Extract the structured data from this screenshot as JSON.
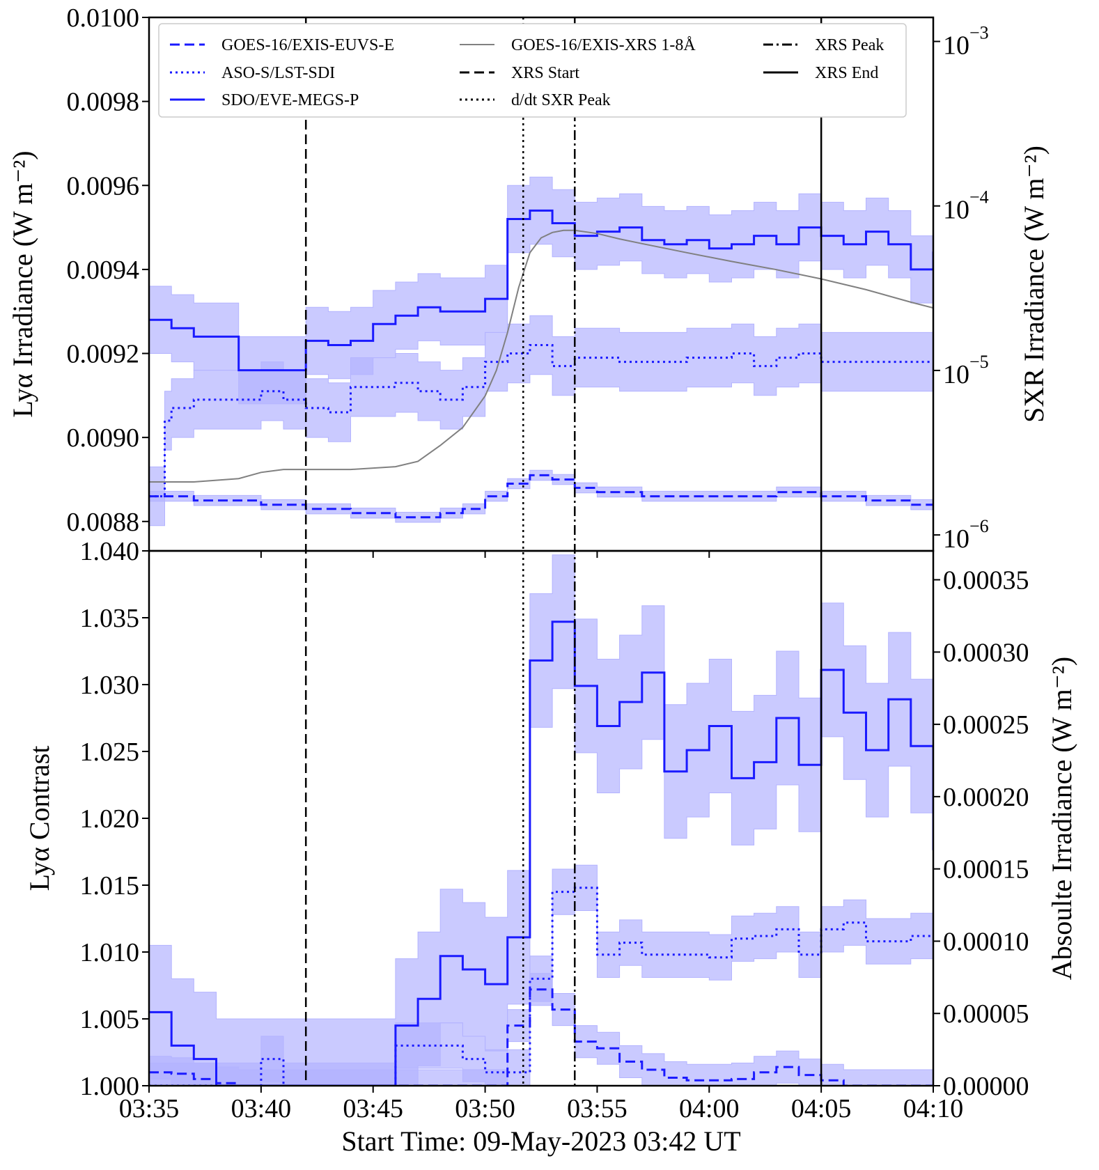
{
  "chart_data": [
    {
      "type": "line",
      "panel": "top",
      "x_ticks": [
        "03:35",
        "03:40",
        "03:45",
        "03:50",
        "03:55",
        "04:00",
        "04:05",
        "04:10"
      ],
      "xlim_minutes_after_0335": [
        0,
        35
      ],
      "ylabel": "Lyα Irradiance (W m⁻²)",
      "y_ticks": [
        "0.0100",
        "0.0098",
        "0.0096",
        "0.0094",
        "0.0092",
        "0.0090",
        "0.0088"
      ],
      "ylim": [
        0.00873,
        0.01
      ],
      "y2label": "SXR Irradiance (W m⁻²)",
      "y2_scale": "log",
      "y2_ticks": [
        {
          "base": "10",
          "exp": "−3"
        },
        {
          "base": "10",
          "exp": "−4"
        },
        {
          "base": "10",
          "exp": "−5"
        },
        {
          "base": "10",
          "exp": "−6"
        }
      ],
      "y2lim": [
        8e-07,
        0.0014
      ],
      "legend": {
        "placement": "top",
        "entries": [
          {
            "label": "GOES-16/EXIS-EUVS-E",
            "style": "dashed",
            "color": "#1a1aff"
          },
          {
            "label": "ASO-S/LST-SDI",
            "style": "dotted",
            "color": "#1a1aff"
          },
          {
            "label": "SDO/EVE-MEGS-P",
            "style": "solid",
            "color": "#1a1aff"
          },
          {
            "label": "GOES-16/EXIS-XRS 1-8Å",
            "style": "solid-thin",
            "color": "#808080"
          },
          {
            "label": "XRS Start",
            "style": "dashed",
            "color": "#000000"
          },
          {
            "label": "d/dt SXR Peak",
            "style": "dotted",
            "color": "#000000"
          },
          {
            "label": "XRS Peak",
            "style": "dashdot",
            "color": "#000000"
          },
          {
            "label": "XRS End",
            "style": "solid",
            "color": "#000000"
          }
        ]
      },
      "series": [
        {
          "name": "SDO/EVE-MEGS-P",
          "style": "solid",
          "color": "#1a1aff",
          "axis": "left",
          "x": [
            0,
            1,
            2,
            3,
            4,
            5,
            6,
            7,
            8,
            9,
            10,
            11,
            12,
            13,
            14,
            15,
            16,
            17,
            18,
            19,
            20,
            21,
            22,
            23,
            24,
            25,
            26,
            27,
            28,
            29,
            30,
            31,
            32,
            33,
            34,
            35
          ],
          "values": [
            0.00928,
            0.00926,
            0.00924,
            0.00924,
            0.00916,
            0.00916,
            0.00916,
            0.00923,
            0.00922,
            0.00923,
            0.00927,
            0.00929,
            0.00931,
            0.0093,
            0.0093,
            0.00933,
            0.00952,
            0.00954,
            0.00951,
            0.00948,
            0.00949,
            0.0095,
            0.00947,
            0.00946,
            0.00947,
            0.00945,
            0.00946,
            0.00948,
            0.00946,
            0.0095,
            0.00948,
            0.00946,
            0.00949,
            0.00946,
            0.0094,
            0.00944
          ],
          "band_halfwidth": 8e-05
        },
        {
          "name": "ASO-S/LST-SDI",
          "style": "dotted",
          "color": "#1a1aff",
          "axis": "left",
          "x": [
            0,
            0.7,
            1,
            2,
            3,
            4,
            5,
            6,
            7,
            8,
            9,
            10,
            11,
            12,
            13,
            14,
            15,
            16,
            17,
            18,
            19,
            20,
            21,
            22,
            23,
            24,
            25,
            26,
            27,
            28,
            29,
            30,
            31,
            32,
            33,
            34,
            35
          ],
          "values": [
            0.00886,
            0.00904,
            0.00907,
            0.00909,
            0.00909,
            0.00909,
            0.00911,
            0.00909,
            0.00907,
            0.00906,
            0.00912,
            0.00912,
            0.00913,
            0.00911,
            0.00909,
            0.00912,
            0.00918,
            0.0092,
            0.00922,
            0.00917,
            0.00919,
            0.00919,
            0.00918,
            0.00918,
            0.00918,
            0.00919,
            0.00919,
            0.0092,
            0.00917,
            0.00919,
            0.0092,
            0.00918,
            0.00918,
            0.00918,
            0.00918,
            0.00918,
            0.00918
          ],
          "band_halfwidth": 7e-05
        },
        {
          "name": "GOES-16/EXIS-EUVS-E",
          "style": "dashed",
          "color": "#1a1aff",
          "axis": "left",
          "x": [
            0,
            1,
            2,
            3,
            4,
            5,
            6,
            7,
            8,
            9,
            10,
            11,
            12,
            13,
            14,
            15,
            16,
            17,
            18,
            19,
            20,
            21,
            22,
            23,
            24,
            25,
            26,
            27,
            28,
            29,
            30,
            31,
            32,
            33,
            34,
            35
          ],
          "values": [
            0.00886,
            0.00886,
            0.00885,
            0.00885,
            0.00885,
            0.00884,
            0.00884,
            0.00883,
            0.00883,
            0.00882,
            0.00882,
            0.00881,
            0.00881,
            0.00882,
            0.00883,
            0.00886,
            0.00889,
            0.00891,
            0.0089,
            0.00888,
            0.00887,
            0.00887,
            0.00886,
            0.00886,
            0.00886,
            0.00886,
            0.00886,
            0.00886,
            0.00887,
            0.00887,
            0.00886,
            0.00886,
            0.00885,
            0.00885,
            0.00884,
            0.00884
          ],
          "band_halfwidth": 1.2e-05
        },
        {
          "name": "GOES-16/EXIS-XRS 1-8Å",
          "style": "solid-thin",
          "color": "#808080",
          "axis": "right",
          "x": [
            0,
            2,
            4,
            5,
            6,
            7,
            9,
            11,
            12,
            13,
            14,
            15,
            15.5,
            16,
            16.5,
            17,
            17.5,
            18,
            18.5,
            19,
            20,
            21,
            22,
            24,
            26,
            28,
            30,
            32,
            34,
            35
          ],
          "values": [
            2.1e-06,
            2.1e-06,
            2.2e-06,
            2.4e-06,
            2.5e-06,
            2.5e-06,
            2.5e-06,
            2.6e-06,
            2.8e-06,
            3.5e-06,
            4.5e-06,
            7e-06,
            1e-05,
            1.7e-05,
            3.2e-05,
            5.2e-05,
            6.4e-05,
            6.9e-05,
            7.1e-05,
            7.1e-05,
            6.8e-05,
            6.3e-05,
            5.9e-05,
            5.2e-05,
            4.6e-05,
            4.1e-05,
            3.6e-05,
            3.1e-05,
            2.6e-05,
            2.4e-05
          ]
        }
      ]
    },
    {
      "type": "line",
      "panel": "bottom",
      "xlabel": "Start Time: 09-May-2023 03:42 UT",
      "x_ticks": [
        "03:35",
        "03:40",
        "03:45",
        "03:50",
        "03:55",
        "04:00",
        "04:05",
        "04:10"
      ],
      "xlim_minutes_after_0335": [
        0,
        35
      ],
      "ylabel": "Lyα Contrast",
      "y_ticks": [
        "1.040",
        "1.035",
        "1.030",
        "1.025",
        "1.020",
        "1.015",
        "1.010",
        "1.005",
        "1.000"
      ],
      "ylim": [
        1.0,
        1.04
      ],
      "y2label": "Absoulte Irradiance (W m⁻²)",
      "y2_ticks": [
        "0.00035",
        "0.00030",
        "0.00025",
        "0.00020",
        "0.00015",
        "0.00010",
        "0.00005",
        "0.00000"
      ],
      "y2lim": [
        0,
        0.00037
      ],
      "series": [
        {
          "name": "SDO/EVE-MEGS-P",
          "style": "solid",
          "color": "#1a1aff",
          "x": [
            0,
            1,
            2,
            3,
            4,
            5,
            6,
            7,
            8,
            9,
            10,
            11,
            12,
            13,
            14,
            15,
            16,
            17,
            18,
            19,
            20,
            21,
            22,
            23,
            24,
            25,
            26,
            27,
            28,
            29,
            30,
            31,
            32,
            33,
            34,
            35
          ],
          "values": [
            1.0055,
            1.003,
            1.002,
            1.0,
            1.0,
            1.0,
            1.0,
            1.0,
            1.0,
            1.0,
            1.0,
            1.0045,
            1.0065,
            1.0097,
            1.0087,
            1.0076,
            1.0111,
            1.0318,
            1.0347,
            1.0299,
            1.0269,
            1.0287,
            1.0309,
            1.0235,
            1.0251,
            1.0269,
            1.023,
            1.0242,
            1.0275,
            1.024,
            1.0311,
            1.0279,
            1.0251,
            1.0289,
            1.0254,
            1.0177
          ],
          "band_halfwidth": 0.005
        },
        {
          "name": "ASO-S/LST-SDI",
          "style": "dotted",
          "color": "#1a1aff",
          "x": [
            0,
            1,
            2,
            3,
            4,
            5,
            6,
            7,
            8,
            9,
            10,
            11,
            12,
            13,
            14,
            15,
            16,
            17,
            18,
            19,
            20,
            21,
            22,
            23,
            24,
            25,
            26,
            27,
            28,
            29,
            30,
            31,
            32,
            33,
            34,
            35
          ],
          "values": [
            1.0,
            1.0,
            1.0,
            1.0,
            1.0,
            1.002,
            1.0,
            1.0,
            1.0,
            1.0,
            1.0,
            1.003,
            1.003,
            1.003,
            1.002,
            1.001,
            1.001,
            1.008,
            1.0145,
            1.0148,
            1.0098,
            1.0107,
            1.0098,
            1.0098,
            1.0098,
            1.0096,
            1.011,
            1.0112,
            1.0117,
            1.0098,
            1.0117,
            1.0122,
            1.0108,
            1.0108,
            1.0112,
            1.0112
          ],
          "band_halfwidth": 0.0017
        },
        {
          "name": "GOES-16/EXIS-EUVS-E",
          "style": "dashed",
          "color": "#1a1aff",
          "x": [
            0,
            1,
            2,
            3,
            4,
            5,
            6,
            7,
            8,
            9,
            10,
            11,
            12,
            13,
            14,
            15,
            16,
            17,
            18,
            19,
            20,
            21,
            22,
            23,
            24,
            25,
            26,
            27,
            28,
            29,
            30,
            31,
            32,
            33,
            34,
            35
          ],
          "values": [
            1.001,
            1.0009,
            1.0005,
            1.0002,
            1.0,
            1.0,
            1.0,
            1.0,
            1.0,
            1.0,
            1.0,
            1.0,
            1.0,
            1.0,
            1.0,
            1.0,
            1.0045,
            1.0072,
            1.0057,
            1.0033,
            1.0028,
            1.0018,
            1.0012,
            1.0006,
            1.0004,
            1.0004,
            1.0005,
            1.001,
            1.0014,
            1.0008,
            1.0004,
            1.0,
            1.0,
            1.0,
            1.0,
            1.0
          ],
          "band_halfwidth": 0.0012
        }
      ]
    }
  ],
  "event_lines": [
    {
      "label": "XRS Start",
      "x": 7,
      "style": "dashed",
      "color": "#000000"
    },
    {
      "label": "d/dt SXR Peak",
      "x": 16.7,
      "style": "dotted",
      "color": "#000000"
    },
    {
      "label": "XRS Peak",
      "x": 19,
      "style": "dashdot",
      "color": "#000000"
    },
    {
      "label": "XRS End",
      "x": 30,
      "style": "solid",
      "color": "#000000"
    }
  ],
  "colors": {
    "series": "#1a1aff",
    "band": "#b3b3ff",
    "xrs": "#808080",
    "axes": "#000000"
  }
}
